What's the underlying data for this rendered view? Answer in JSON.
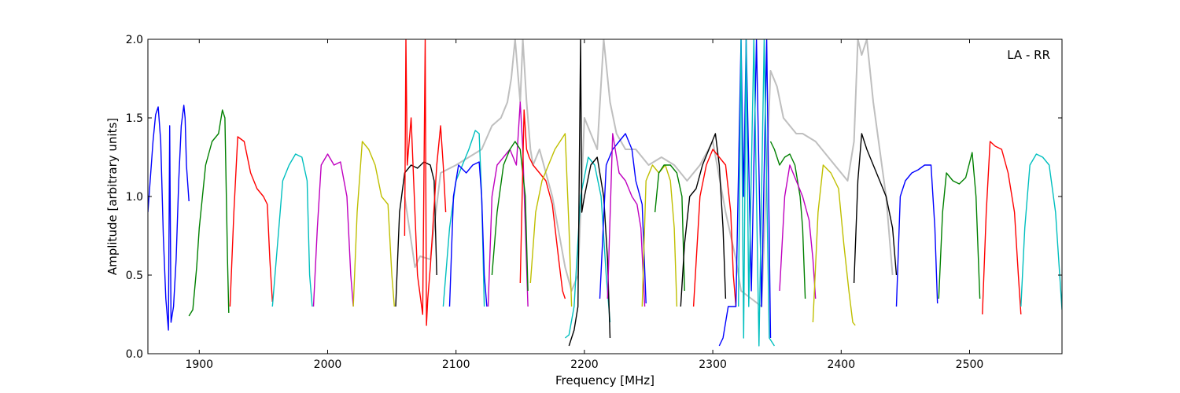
{
  "chart_data": {
    "type": "line",
    "title": "",
    "annotation": "LA - RR",
    "xlabel": "Frequency [MHz]",
    "ylabel": "Amplitude [arbitrary units]",
    "xlim": [
      1860,
      2572
    ],
    "ylim": [
      0.0,
      2.0
    ],
    "xticks": [
      1900,
      2000,
      2100,
      2200,
      2300,
      2400,
      2500
    ],
    "xtick_labels": [
      "1900",
      "2000",
      "2100",
      "2200",
      "2300",
      "2400",
      "2500"
    ],
    "yticks": [
      0.0,
      0.5,
      1.0,
      1.5,
      2.0
    ],
    "ytick_labels": [
      "0.0",
      "0.5",
      "1.0",
      "1.5",
      "2.0"
    ],
    "grid": false,
    "background_color": "#bfbfbf",
    "background_series": {
      "x": [
        2060,
        2068,
        2072,
        2080,
        2088,
        2100,
        2110,
        2120,
        2128,
        2135,
        2140,
        2143,
        2146,
        2150,
        2152,
        2155,
        2158,
        2160,
        2165,
        2175,
        2185,
        2190,
        2195,
        2200,
        2205,
        2210,
        2215,
        2220,
        2225,
        2232,
        2240,
        2250,
        2260,
        2270,
        2280,
        2290,
        2300,
        2310,
        2318,
        2322,
        2330,
        2338,
        2345,
        2350,
        2355,
        2360,
        2365,
        2370,
        2380,
        2395,
        2405,
        2410,
        2413,
        2416,
        2420,
        2425,
        2435,
        2440
      ],
      "y": [
        1.0,
        0.55,
        0.62,
        0.6,
        1.15,
        1.2,
        1.25,
        1.3,
        1.45,
        1.5,
        1.6,
        1.75,
        2.0,
        1.6,
        2.0,
        1.6,
        1.3,
        1.2,
        1.3,
        1.0,
        0.55,
        0.4,
        0.5,
        1.5,
        1.4,
        1.3,
        2.0,
        1.6,
        1.4,
        1.3,
        1.3,
        1.2,
        1.25,
        1.2,
        1.1,
        1.2,
        1.35,
        0.9,
        0.6,
        0.4,
        0.35,
        0.3,
        1.8,
        1.7,
        1.5,
        1.45,
        1.4,
        1.4,
        1.35,
        1.2,
        1.1,
        1.35,
        2.0,
        1.9,
        2.0,
        1.6,
        1.0,
        0.5
      ]
    },
    "series": [
      {
        "color": "#0000ff",
        "x": [
          1860,
          1864,
          1866,
          1868,
          1870,
          1872,
          1874,
          1876,
          1877,
          1878,
          1880,
          1882,
          1884,
          1886,
          1888,
          1889,
          1890,
          1892
        ],
        "y": [
          0.9,
          1.35,
          1.52,
          1.57,
          1.35,
          0.75,
          0.35,
          0.15,
          1.45,
          0.2,
          0.3,
          0.6,
          1.1,
          1.45,
          1.58,
          1.5,
          1.2,
          0.97
        ]
      },
      {
        "color": "#008000",
        "x": [
          1892,
          1895,
          1898,
          1900,
          1905,
          1910,
          1915,
          1918,
          1920,
          1922,
          1923
        ],
        "y": [
          0.24,
          0.28,
          0.55,
          0.8,
          1.2,
          1.35,
          1.4,
          1.55,
          1.5,
          0.6,
          0.26
        ]
      },
      {
        "color": "#ff0000",
        "x": [
          1924,
          1927,
          1930,
          1935,
          1940,
          1945,
          1950,
          1953,
          1955,
          1957
        ],
        "y": [
          0.3,
          0.9,
          1.38,
          1.35,
          1.15,
          1.05,
          1.0,
          0.95,
          0.6,
          0.33
        ]
      },
      {
        "color": "#00bfbf",
        "x": [
          1957,
          1960,
          1965,
          1970,
          1975,
          1980,
          1984,
          1986,
          1988
        ],
        "y": [
          0.3,
          0.6,
          1.1,
          1.2,
          1.27,
          1.25,
          1.1,
          0.5,
          0.3
        ]
      },
      {
        "color": "#bf00bf",
        "x": [
          1989,
          1992,
          1995,
          2000,
          2005,
          2010,
          2015,
          2018,
          2020
        ],
        "y": [
          0.3,
          0.8,
          1.2,
          1.27,
          1.2,
          1.22,
          1.0,
          0.5,
          0.3
        ]
      },
      {
        "color": "#bfbf00",
        "x": [
          2020,
          2023,
          2027,
          2032,
          2037,
          2042,
          2047,
          2050,
          2052
        ],
        "y": [
          0.3,
          0.9,
          1.35,
          1.3,
          1.2,
          1.0,
          0.95,
          0.5,
          0.3
        ]
      },
      {
        "color": "#000000",
        "x": [
          2053,
          2056,
          2060,
          2065,
          2070,
          2075,
          2080,
          2083,
          2085
        ],
        "y": [
          0.3,
          0.9,
          1.15,
          1.2,
          1.18,
          1.22,
          1.2,
          1.1,
          0.5
        ]
      },
      {
        "color": "#ff0000",
        "x": [
          2060,
          2061,
          2062,
          2065,
          2070,
          2074,
          2076,
          2077,
          2078,
          2080,
          2085,
          2088,
          2090,
          2092
        ],
        "y": [
          0.75,
          2.0,
          1.2,
          1.5,
          0.5,
          0.25,
          2.0,
          0.18,
          0.35,
          0.55,
          1.2,
          1.45,
          1.2,
          0.9
        ]
      },
      {
        "color": "#00bfbf",
        "x": [
          2090,
          2095,
          2100,
          2105,
          2110,
          2115,
          2118,
          2120,
          2122
        ],
        "y": [
          0.3,
          0.8,
          1.1,
          1.2,
          1.3,
          1.42,
          1.4,
          1.0,
          0.3
        ]
      },
      {
        "color": "#0000ff",
        "x": [
          2095,
          2098,
          2102,
          2108,
          2113,
          2118,
          2120,
          2122,
          2124
        ],
        "y": [
          0.3,
          1.0,
          1.2,
          1.15,
          1.2,
          1.22,
          1.0,
          0.5,
          0.3
        ]
      },
      {
        "color": "#bf00bf",
        "x": [
          2125,
          2128,
          2132,
          2137,
          2142,
          2147,
          2150,
          2152,
          2154,
          2156
        ],
        "y": [
          0.3,
          1.0,
          1.2,
          1.25,
          1.3,
          1.2,
          1.6,
          1.3,
          0.8,
          0.3
        ]
      },
      {
        "color": "#008000",
        "x": [
          2128,
          2132,
          2137,
          2142,
          2146,
          2150,
          2154,
          2156
        ],
        "y": [
          0.5,
          0.9,
          1.2,
          1.3,
          1.35,
          1.3,
          1.0,
          0.4
        ]
      },
      {
        "color": "#ff0000",
        "x": [
          2150,
          2153,
          2155,
          2157,
          2160,
          2165,
          2170,
          2175,
          2180,
          2183,
          2185
        ],
        "y": [
          0.45,
          1.55,
          1.3,
          1.25,
          1.2,
          1.15,
          1.1,
          0.95,
          0.6,
          0.4,
          0.35
        ]
      },
      {
        "color": "#bfbf00",
        "x": [
          2158,
          2162,
          2167,
          2172,
          2177,
          2181,
          2185,
          2188,
          2190
        ],
        "y": [
          0.45,
          0.9,
          1.1,
          1.2,
          1.3,
          1.35,
          1.4,
          0.8,
          0.3
        ]
      },
      {
        "color": "#00bfbf",
        "x": [
          2185,
          2188,
          2192,
          2197,
          2203,
          2208,
          2213,
          2217,
          2220
        ],
        "y": [
          0.1,
          0.12,
          0.3,
          1.0,
          1.25,
          1.2,
          1.0,
          0.5,
          0.2
        ]
      },
      {
        "color": "#000000",
        "x": [
          2188,
          2192,
          2195,
          2197,
          2198,
          2200,
          2205,
          2210,
          2215,
          2218,
          2220
        ],
        "y": [
          0.05,
          0.15,
          0.3,
          2.0,
          0.9,
          1.0,
          1.2,
          1.25,
          1.0,
          0.6,
          0.1
        ]
      },
      {
        "color": "#0000ff",
        "x": [
          2212,
          2217,
          2222,
          2227,
          2232,
          2237,
          2240,
          2245,
          2248
        ],
        "y": [
          0.35,
          1.2,
          1.3,
          1.35,
          1.4,
          1.3,
          1.1,
          0.95,
          0.32
        ]
      },
      {
        "color": "#bf00bf",
        "x": [
          2218,
          2222,
          2227,
          2232,
          2237,
          2241,
          2244,
          2247
        ],
        "y": [
          0.35,
          1.4,
          1.15,
          1.1,
          1.0,
          0.95,
          0.8,
          0.3
        ]
      },
      {
        "color": "#bfbf00",
        "x": [
          2245,
          2248,
          2253,
          2258,
          2263,
          2267,
          2270,
          2272
        ],
        "y": [
          0.3,
          1.1,
          1.2,
          1.15,
          1.2,
          1.1,
          0.8,
          0.3
        ]
      },
      {
        "color": "#008000",
        "x": [
          2255,
          2258,
          2262,
          2267,
          2272,
          2276,
          2278
        ],
        "y": [
          0.9,
          1.15,
          1.2,
          1.2,
          1.15,
          1.0,
          0.4
        ]
      },
      {
        "color": "#000000",
        "x": [
          2275,
          2278,
          2282,
          2287,
          2292,
          2297,
          2302,
          2305,
          2308,
          2310
        ],
        "y": [
          0.3,
          0.7,
          1.0,
          1.05,
          1.2,
          1.3,
          1.4,
          1.2,
          0.8,
          0.35
        ]
      },
      {
        "color": "#ff0000",
        "x": [
          2285,
          2290,
          2295,
          2300,
          2305,
          2310,
          2314,
          2316,
          2318
        ],
        "y": [
          0.3,
          1.0,
          1.2,
          1.3,
          1.25,
          1.2,
          0.9,
          0.5,
          0.3
        ]
      },
      {
        "color": "#0000ff",
        "x": [
          2305,
          2308,
          2312,
          2318,
          2322,
          2324,
          2326,
          2330,
          2334,
          2338,
          2342,
          2345
        ],
        "y": [
          0.05,
          0.1,
          0.3,
          0.3,
          2.0,
          1.0,
          2.0,
          0.4,
          2.0,
          0.3,
          2.0,
          0.1
        ]
      },
      {
        "color": "#00bfbf",
        "x": [
          2320,
          2322,
          2324,
          2326,
          2328,
          2332,
          2336,
          2340,
          2344,
          2348
        ],
        "y": [
          0.3,
          2.0,
          0.1,
          2.0,
          0.3,
          2.0,
          0.05,
          2.0,
          0.1,
          0.05
        ]
      },
      {
        "color": "#008000",
        "x": [
          2345,
          2348,
          2352,
          2356,
          2360,
          2364,
          2368,
          2370,
          2372
        ],
        "y": [
          1.35,
          1.3,
          1.2,
          1.25,
          1.27,
          1.2,
          1.0,
          0.8,
          0.35
        ]
      },
      {
        "color": "#bf00bf",
        "x": [
          2352,
          2356,
          2360,
          2365,
          2370,
          2375,
          2378,
          2380
        ],
        "y": [
          0.4,
          1.0,
          1.2,
          1.1,
          1.0,
          0.85,
          0.6,
          0.35
        ]
      },
      {
        "color": "#bfbf00",
        "x": [
          2378,
          2382,
          2386,
          2392,
          2398,
          2402,
          2406,
          2409,
          2411
        ],
        "y": [
          0.2,
          0.9,
          1.2,
          1.15,
          1.05,
          0.7,
          0.4,
          0.2,
          0.18
        ]
      },
      {
        "color": "#000000",
        "x": [
          2410,
          2413,
          2416,
          2420,
          2425,
          2430,
          2435,
          2440,
          2443
        ],
        "y": [
          0.45,
          1.1,
          1.4,
          1.3,
          1.2,
          1.1,
          1.0,
          0.8,
          0.5
        ]
      },
      {
        "color": "#0000ff",
        "x": [
          2443,
          2446,
          2450,
          2455,
          2460,
          2465,
          2470,
          2473,
          2475
        ],
        "y": [
          0.3,
          1.0,
          1.1,
          1.15,
          1.17,
          1.2,
          1.2,
          0.8,
          0.32
        ]
      },
      {
        "color": "#008000",
        "x": [
          2476,
          2479,
          2482,
          2487,
          2492,
          2497,
          2502,
          2505,
          2508
        ],
        "y": [
          0.35,
          0.9,
          1.15,
          1.1,
          1.08,
          1.12,
          1.28,
          1.0,
          0.35
        ]
      },
      {
        "color": "#ff0000",
        "x": [
          2510,
          2513,
          2516,
          2520,
          2525,
          2530,
          2535,
          2538,
          2540
        ],
        "y": [
          0.25,
          0.9,
          1.35,
          1.32,
          1.3,
          1.15,
          0.9,
          0.5,
          0.25
        ]
      },
      {
        "color": "#00bfbf",
        "x": [
          2540,
          2543,
          2547,
          2552,
          2557,
          2562,
          2567,
          2572
        ],
        "y": [
          0.3,
          0.8,
          1.2,
          1.27,
          1.25,
          1.2,
          0.9,
          0.28
        ]
      }
    ]
  }
}
